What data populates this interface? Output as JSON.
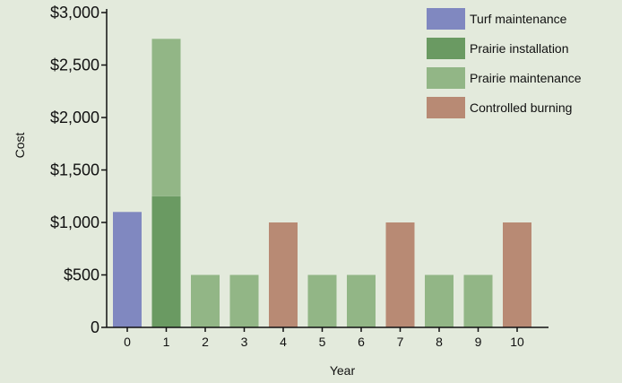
{
  "chart_data": {
    "type": "bar",
    "stacked": true,
    "xlabel": "Year",
    "ylabel": "Cost",
    "categories": [
      "0",
      "1",
      "2",
      "3",
      "4",
      "5",
      "6",
      "7",
      "8",
      "9",
      "10"
    ],
    "ylim": [
      0,
      3000
    ],
    "yticks": [
      {
        "value": 0,
        "label": "0"
      },
      {
        "value": 500,
        "label": "$500"
      },
      {
        "value": 1000,
        "label": "$1,000"
      },
      {
        "value": 1500,
        "label": "$1,500"
      },
      {
        "value": 2000,
        "label": "$2,000"
      },
      {
        "value": 2500,
        "label": "$2,500"
      },
      {
        "value": 3000,
        "label": "$3,000"
      }
    ],
    "series": [
      {
        "name": "Turf maintenance",
        "color": "#8088c0",
        "values": [
          1100,
          0,
          0,
          0,
          0,
          0,
          0,
          0,
          0,
          0,
          0
        ]
      },
      {
        "name": "Prairie installation",
        "color": "#6a9a62",
        "values": [
          0,
          1250,
          0,
          0,
          0,
          0,
          0,
          0,
          0,
          0,
          0
        ]
      },
      {
        "name": "Prairie maintenance",
        "color": "#92b686",
        "values": [
          0,
          1500,
          500,
          500,
          0,
          500,
          500,
          0,
          500,
          500,
          0
        ]
      },
      {
        "name": "Controlled burning",
        "color": "#b88a74",
        "values": [
          0,
          0,
          0,
          0,
          1000,
          0,
          0,
          1000,
          0,
          0,
          1000
        ]
      }
    ],
    "grid": false,
    "legend_position": "top-right"
  }
}
